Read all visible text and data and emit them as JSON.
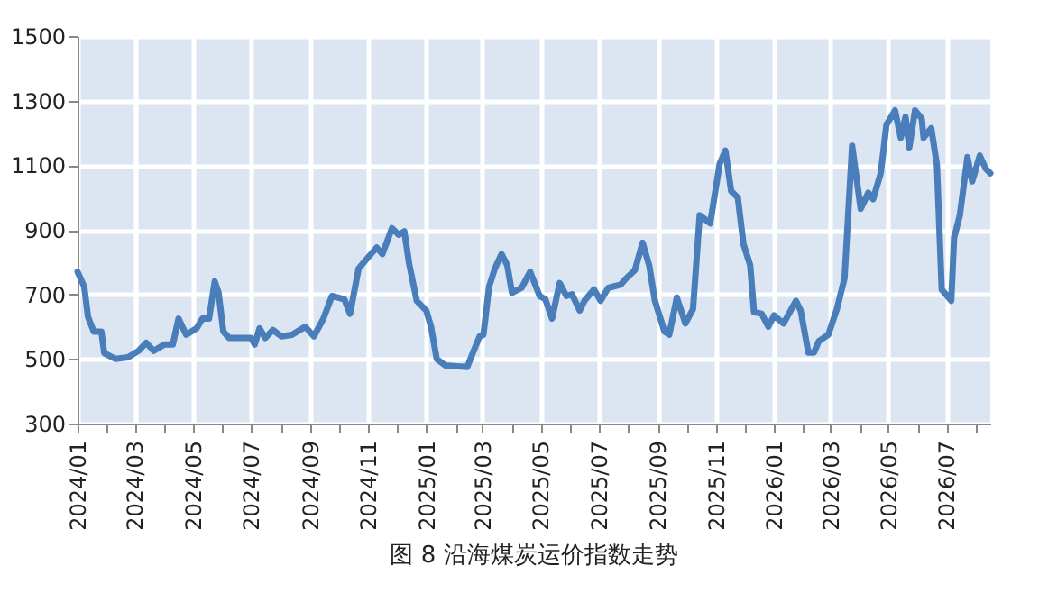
{
  "chart_data": {
    "type": "line",
    "title": "图 8 沿海煤炭运价指数走势",
    "x": [
      "2024-01-01",
      "2024-01-08",
      "2024-01-12",
      "2024-01-18",
      "2024-01-26",
      "2024-01-29",
      "2024-02-10",
      "2024-02-23",
      "2024-03-05",
      "2024-03-13",
      "2024-03-21",
      "2024-04-01",
      "2024-04-10",
      "2024-04-16",
      "2024-04-24",
      "2024-05-05",
      "2024-05-11",
      "2024-05-18",
      "2024-05-24",
      "2024-05-28",
      "2024-06-02",
      "2024-06-08",
      "2024-07-01",
      "2024-07-05",
      "2024-07-10",
      "2024-07-16",
      "2024-07-24",
      "2024-08-02",
      "2024-08-13",
      "2024-08-27",
      "2024-09-05",
      "2024-09-15",
      "2024-09-24",
      "2024-10-07",
      "2024-10-13",
      "2024-10-22",
      "2024-11-01",
      "2024-11-10",
      "2024-11-16",
      "2024-11-26",
      "2024-12-03",
      "2024-12-09",
      "2024-12-14",
      "2024-12-22",
      "2025-01-01",
      "2025-01-06",
      "2025-01-12",
      "2025-01-21",
      "2025-02-13",
      "2025-02-19",
      "2025-02-26",
      "2025-03-02",
      "2025-03-08",
      "2025-03-14",
      "2025-03-21",
      "2025-03-27",
      "2025-04-01",
      "2025-04-11",
      "2025-04-20",
      "2025-04-30",
      "2025-05-06",
      "2025-05-13",
      "2025-05-21",
      "2025-05-28",
      "2025-06-03",
      "2025-06-11",
      "2025-06-16",
      "2025-06-26",
      "2025-07-03",
      "2025-07-11",
      "2025-07-24",
      "2025-07-30",
      "2025-08-08",
      "2025-08-16",
      "2025-08-23",
      "2025-08-29",
      "2025-09-08",
      "2025-09-13",
      "2025-09-21",
      "2025-09-30",
      "2025-10-08",
      "2025-10-15",
      "2025-10-26",
      "2025-11-05",
      "2025-11-11",
      "2025-11-17",
      "2025-11-24",
      "2025-11-30",
      "2025-12-07",
      "2025-12-11",
      "2025-12-19",
      "2025-12-26",
      "2026-01-01",
      "2026-01-11",
      "2026-01-24",
      "2026-01-29",
      "2026-02-06",
      "2026-02-12",
      "2026-02-17",
      "2026-02-27",
      "2026-03-08",
      "2026-03-16",
      "2026-03-24",
      "2026-04-02",
      "2026-04-10",
      "2026-04-15",
      "2026-04-23",
      "2026-04-29",
      "2026-05-08",
      "2026-05-14",
      "2026-05-19",
      "2026-05-23",
      "2026-05-29",
      "2026-06-05",
      "2026-06-07",
      "2026-06-15",
      "2026-06-21",
      "2026-06-26",
      "2026-07-06",
      "2026-07-09",
      "2026-07-15",
      "2026-07-23",
      "2026-07-28",
      "2026-08-05",
      "2026-08-11",
      "2026-08-16"
    ],
    "series": [
      {
        "color": "#4a7ebb",
        "values": [
          770,
          724,
          630,
          585,
          585,
          518,
          500,
          505,
          525,
          550,
          525,
          545,
          545,
          625,
          575,
          595,
          625,
          625,
          740,
          705,
          585,
          565,
          565,
          545,
          595,
          565,
          590,
          570,
          575,
          600,
          570,
          625,
          695,
          685,
          640,
          780,
          815,
          845,
          825,
          905,
          885,
          895,
          795,
          680,
          650,
          600,
          500,
          480,
          475,
          520,
          570,
          575,
          725,
          780,
          825,
          790,
          705,
          720,
          770,
          695,
          685,
          625,
          735,
          695,
          700,
          650,
          680,
          715,
          680,
          720,
          730,
          750,
          775,
          860,
          790,
          680,
          585,
          575,
          690,
          610,
          655,
          945,
          920,
          1105,
          1145,
          1020,
          1000,
          855,
          790,
          645,
          640,
          600,
          635,
          610,
          680,
          650,
          520,
          520,
          555,
          575,
          655,
          750,
          1160,
          965,
          1015,
          995,
          1075,
          1225,
          1270,
          1185,
          1250,
          1155,
          1270,
          1245,
          1185,
          1215,
          1100,
          715,
          680,
          875,
          945,
          1125,
          1050,
          1130,
          1090,
          1075
        ]
      }
    ],
    "xlim": [
      "2024-01-01",
      "2026-08-16"
    ],
    "xticks": [
      {
        "value": "2024-01",
        "label": "2024/01"
      },
      {
        "value": "2024-02",
        "label": null
      },
      {
        "value": "2024-03",
        "label": "2024/03"
      },
      {
        "value": "2024-04",
        "label": null
      },
      {
        "value": "2024-05",
        "label": "2024/05"
      },
      {
        "value": "2024-06",
        "label": null
      },
      {
        "value": "2024-07",
        "label": "2024/07"
      },
      {
        "value": "2024-08",
        "label": null
      },
      {
        "value": "2024-09",
        "label": "2024/09"
      },
      {
        "value": "2024-10",
        "label": null
      },
      {
        "value": "2024-11",
        "label": "2024/11"
      },
      {
        "value": "2024-12",
        "label": null
      },
      {
        "value": "2025-01",
        "label": "2025/01"
      },
      {
        "value": "2025-02",
        "label": null
      },
      {
        "value": "2025-03",
        "label": "2025/03"
      },
      {
        "value": "2025-04",
        "label": null
      },
      {
        "value": "2025-05",
        "label": "2025/05"
      },
      {
        "value": "2025-06",
        "label": null
      },
      {
        "value": "2025-07",
        "label": "2025/07"
      },
      {
        "value": "2025-08",
        "label": null
      },
      {
        "value": "2025-09",
        "label": "2025/09"
      },
      {
        "value": "2025-10",
        "label": null
      },
      {
        "value": "2025-11",
        "label": "2025/11"
      },
      {
        "value": "2025-12",
        "label": null
      },
      {
        "value": "2026-01",
        "label": "2026/01"
      },
      {
        "value": "2026-02",
        "label": null
      },
      {
        "value": "2026-03",
        "label": "2026/03"
      },
      {
        "value": "2026-04",
        "label": null
      },
      {
        "value": "2026-05",
        "label": "2026/05"
      },
      {
        "value": "2026-06",
        "label": null
      },
      {
        "value": "2026-07",
        "label": "2026/07"
      },
      {
        "value": "2026-08",
        "label": null
      }
    ],
    "ylim": [
      300,
      1500
    ],
    "yticks": [
      300,
      500,
      700,
      900,
      1100,
      1300,
      1500
    ],
    "grid": true,
    "line_style": "solid",
    "marker": "none"
  }
}
